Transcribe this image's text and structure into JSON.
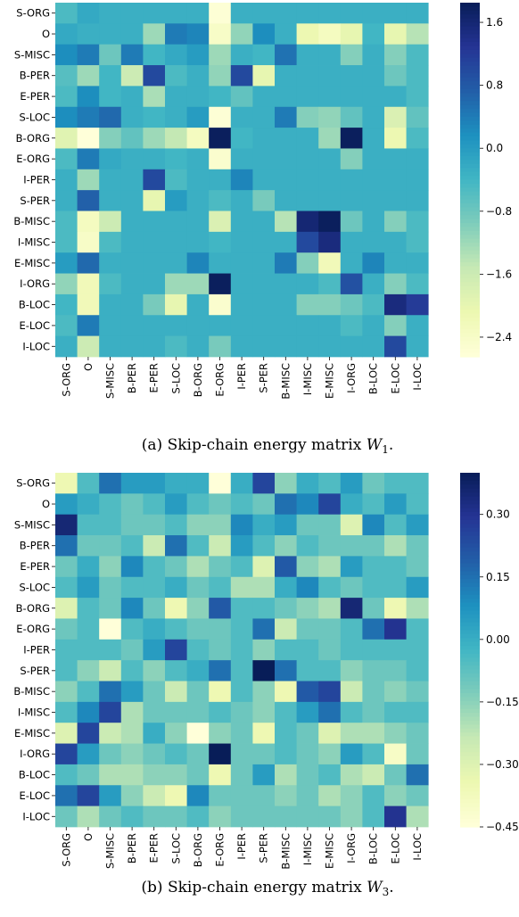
{
  "labels": [
    "S-ORG",
    "O",
    "S-MISC",
    "B-PER",
    "E-PER",
    "S-LOC",
    "B-ORG",
    "E-ORG",
    "I-PER",
    "S-PER",
    "B-MISC",
    "I-MISC",
    "E-MISC",
    "I-ORG",
    "B-LOC",
    "E-LOC",
    "I-LOC"
  ],
  "chart_data": [
    {
      "type": "heatmap",
      "caption_prefix": "(a) Skip-chain energy matrix ",
      "caption_math": "W",
      "caption_sub": "1",
      "caption_suffix": ".",
      "colormap": "YlGnBu",
      "vmin": -2.65,
      "vmax": 1.85,
      "colorbar_ticks": [
        1.6,
        0.8,
        0.0,
        -0.8,
        -1.6,
        -2.4
      ],
      "colorbar_tick_labels": [
        "1.6",
        "0.8",
        "0.0",
        "−0.8",
        "−1.6",
        "−2.4"
      ],
      "values": [
        [
          -0.5,
          -0.2,
          -0.3,
          -0.3,
          -0.3,
          -0.3,
          -0.3,
          -2.6,
          -0.3,
          -0.3,
          -0.3,
          -0.3,
          -0.3,
          -0.3,
          -0.3,
          -0.3,
          -0.3
        ],
        [
          -0.2,
          -0.3,
          -0.3,
          -0.3,
          -1.2,
          0.4,
          0.3,
          -2.4,
          -1.1,
          0.2,
          -0.3,
          -2.1,
          -2.3,
          -2.0,
          -0.4,
          -2.0,
          -1.4
        ],
        [
          0.2,
          0.4,
          -0.8,
          0.4,
          -0.4,
          -0.2,
          0.0,
          -1.2,
          -0.3,
          -0.4,
          0.5,
          -0.3,
          -0.3,
          -1.0,
          -0.3,
          -1.0,
          -0.5
        ],
        [
          -0.6,
          -1.2,
          -0.4,
          -1.6,
          1.0,
          -0.5,
          -0.3,
          -1.1,
          1.0,
          -2.0,
          -0.3,
          -0.3,
          -0.3,
          -0.3,
          -0.3,
          -0.8,
          -0.5
        ],
        [
          -0.5,
          0.2,
          -0.4,
          -0.3,
          -1.3,
          -0.3,
          -0.3,
          -0.4,
          -0.7,
          -0.3,
          -0.3,
          -0.3,
          -0.3,
          -0.3,
          -0.3,
          -0.3,
          -0.5
        ],
        [
          0.2,
          0.4,
          0.6,
          -0.3,
          -0.4,
          -0.3,
          0.0,
          -2.6,
          -0.3,
          -0.3,
          0.4,
          -1.0,
          -1.1,
          -0.7,
          -0.3,
          -1.8,
          -0.7
        ],
        [
          -1.9,
          -2.7,
          -1.0,
          -0.7,
          -1.2,
          -1.5,
          -2.3,
          1.8,
          -0.4,
          -0.3,
          -0.3,
          -0.3,
          -1.2,
          1.8,
          -0.3,
          -2.1,
          -0.5
        ],
        [
          -0.5,
          0.4,
          -0.2,
          -0.3,
          -0.3,
          -0.4,
          -0.3,
          -2.5,
          -0.3,
          -0.3,
          -0.3,
          -0.3,
          -0.3,
          -1.0,
          -0.3,
          -0.3,
          -0.3
        ],
        [
          -0.3,
          -1.2,
          -0.3,
          -0.3,
          1.0,
          -0.5,
          -0.3,
          -0.3,
          0.3,
          -0.3,
          -0.3,
          -0.3,
          -0.3,
          -0.3,
          -0.3,
          -0.3,
          -0.3
        ],
        [
          -0.3,
          0.7,
          -0.3,
          -0.3,
          -2.0,
          0.0,
          -0.3,
          -0.5,
          -0.3,
          -0.9,
          -0.3,
          -0.3,
          -0.3,
          -0.3,
          -0.3,
          -0.3,
          -0.3
        ],
        [
          -0.5,
          -2.3,
          -1.6,
          -0.3,
          -0.3,
          -0.3,
          -0.3,
          -1.8,
          -0.3,
          -0.3,
          -1.4,
          1.6,
          1.8,
          -0.8,
          -0.3,
          -1.0,
          -0.5
        ],
        [
          -0.5,
          -2.4,
          -0.5,
          -0.3,
          -0.3,
          -0.3,
          -0.3,
          -0.4,
          -0.3,
          -0.3,
          -0.3,
          1.0,
          1.5,
          -0.3,
          -0.3,
          -0.3,
          -0.5
        ],
        [
          0.0,
          0.6,
          -0.3,
          -0.3,
          -0.3,
          -0.3,
          0.3,
          -0.3,
          -0.3,
          -0.3,
          0.4,
          -1.0,
          -2.2,
          -0.3,
          0.3,
          -0.3,
          -0.3
        ],
        [
          -1.1,
          -2.2,
          -0.5,
          -0.3,
          -0.3,
          -1.2,
          -1.2,
          1.8,
          -0.3,
          -0.3,
          -0.3,
          -0.3,
          -0.5,
          0.9,
          -0.3,
          -1.0,
          -0.5
        ],
        [
          -0.4,
          -2.2,
          -0.3,
          -0.3,
          -0.9,
          -2.0,
          -0.3,
          -2.5,
          -0.3,
          -0.3,
          -0.3,
          -1.0,
          -1.0,
          -0.8,
          -0.5,
          1.5,
          1.2
        ],
        [
          -0.5,
          0.4,
          -0.3,
          -0.3,
          -0.3,
          -0.3,
          -0.3,
          -0.3,
          -0.3,
          -0.3,
          -0.3,
          -0.3,
          -0.3,
          -0.5,
          -0.3,
          -1.0,
          -0.3
        ],
        [
          -0.3,
          -1.6,
          -0.3,
          -0.3,
          -0.3,
          -0.5,
          -0.3,
          -0.9,
          -0.3,
          -0.3,
          -0.3,
          -0.3,
          -0.3,
          -0.3,
          -0.3,
          1.0,
          -0.3
        ]
      ]
    },
    {
      "type": "heatmap",
      "caption_prefix": "(b) Skip-chain energy matrix ",
      "caption_math": "W",
      "caption_sub": "3",
      "caption_suffix": ".",
      "colormap": "YlGnBu",
      "vmin": -0.45,
      "vmax": 0.4,
      "colorbar_ticks": [
        0.3,
        0.15,
        0.0,
        -0.15,
        -0.3,
        -0.45
      ],
      "colorbar_tick_labels": [
        "0.30",
        "0.15",
        "0.00",
        "−0.15",
        "−0.30",
        "−0.45"
      ],
      "values": [
        [
          -0.35,
          -0.05,
          0.15,
          0.05,
          0.05,
          0.0,
          0.0,
          -0.45,
          0.0,
          0.25,
          -0.15,
          0.0,
          -0.05,
          0.05,
          -0.1,
          -0.05,
          -0.05
        ],
        [
          0.05,
          0.0,
          -0.05,
          -0.1,
          -0.05,
          0.05,
          -0.05,
          -0.1,
          -0.05,
          -0.1,
          0.15,
          0.1,
          0.25,
          0.0,
          -0.05,
          0.05,
          -0.05
        ],
        [
          0.35,
          -0.05,
          -0.05,
          -0.1,
          -0.1,
          -0.05,
          -0.15,
          -0.15,
          0.1,
          0.0,
          0.05,
          -0.1,
          -0.1,
          -0.3,
          0.1,
          -0.05,
          0.05
        ],
        [
          0.15,
          -0.1,
          -0.1,
          -0.05,
          -0.25,
          0.15,
          -0.05,
          -0.25,
          0.05,
          -0.05,
          -0.15,
          -0.05,
          -0.1,
          -0.1,
          -0.1,
          -0.2,
          -0.1
        ],
        [
          -0.1,
          0.0,
          -0.15,
          0.1,
          -0.05,
          -0.1,
          -0.2,
          -0.1,
          -0.05,
          -0.3,
          0.2,
          -0.15,
          -0.2,
          0.05,
          -0.05,
          -0.05,
          -0.1
        ],
        [
          -0.05,
          0.05,
          -0.1,
          -0.05,
          -0.05,
          0.0,
          -0.1,
          -0.05,
          -0.2,
          -0.2,
          0.0,
          0.1,
          -0.05,
          -0.1,
          -0.05,
          -0.05,
          0.05
        ],
        [
          -0.3,
          -0.05,
          -0.1,
          0.1,
          -0.1,
          -0.35,
          -0.15,
          0.2,
          -0.05,
          -0.05,
          -0.1,
          -0.15,
          -0.2,
          0.35,
          -0.1,
          -0.35,
          -0.2
        ],
        [
          -0.1,
          -0.05,
          -0.45,
          -0.05,
          0.0,
          -0.05,
          -0.1,
          -0.1,
          -0.05,
          0.15,
          -0.25,
          -0.1,
          -0.1,
          -0.05,
          0.15,
          0.3,
          -0.05
        ],
        [
          -0.05,
          -0.05,
          -0.05,
          -0.1,
          0.05,
          0.25,
          -0.05,
          -0.1,
          -0.05,
          -0.15,
          -0.05,
          -0.05,
          -0.1,
          -0.05,
          -0.05,
          -0.05,
          -0.05
        ],
        [
          -0.05,
          -0.15,
          -0.25,
          -0.05,
          -0.15,
          -0.05,
          0.0,
          0.15,
          -0.05,
          0.4,
          0.15,
          -0.05,
          -0.05,
          -0.15,
          -0.1,
          -0.1,
          -0.05
        ],
        [
          -0.15,
          -0.05,
          0.15,
          0.05,
          -0.1,
          -0.25,
          -0.1,
          -0.35,
          -0.05,
          -0.15,
          -0.35,
          0.2,
          0.25,
          -0.25,
          -0.1,
          -0.15,
          -0.1
        ],
        [
          -0.05,
          0.1,
          0.25,
          -0.2,
          -0.1,
          -0.1,
          -0.1,
          -0.05,
          -0.1,
          -0.15,
          -0.05,
          0.05,
          0.15,
          -0.05,
          -0.1,
          -0.05,
          -0.05
        ],
        [
          -0.3,
          0.25,
          -0.25,
          -0.2,
          0.0,
          -0.15,
          -0.45,
          -0.15,
          -0.1,
          -0.35,
          -0.05,
          -0.1,
          -0.3,
          -0.2,
          -0.2,
          -0.15,
          -0.1
        ],
        [
          0.25,
          0.05,
          -0.1,
          -0.15,
          -0.1,
          -0.05,
          -0.1,
          0.4,
          -0.1,
          -0.1,
          -0.05,
          -0.1,
          -0.15,
          0.05,
          -0.05,
          -0.4,
          -0.1
        ],
        [
          -0.05,
          -0.1,
          -0.2,
          -0.2,
          -0.15,
          -0.15,
          -0.1,
          -0.35,
          -0.1,
          0.05,
          -0.2,
          -0.1,
          -0.05,
          -0.2,
          -0.25,
          -0.1,
          0.15
        ],
        [
          0.15,
          0.25,
          0.05,
          -0.15,
          -0.25,
          -0.35,
          0.1,
          -0.1,
          -0.1,
          -0.1,
          -0.15,
          -0.1,
          -0.2,
          -0.15,
          -0.05,
          -0.15,
          -0.1
        ],
        [
          -0.1,
          -0.2,
          -0.1,
          -0.05,
          -0.1,
          -0.1,
          -0.05,
          -0.15,
          -0.1,
          -0.1,
          -0.1,
          -0.1,
          -0.1,
          -0.15,
          -0.05,
          0.3,
          -0.2
        ]
      ]
    }
  ]
}
